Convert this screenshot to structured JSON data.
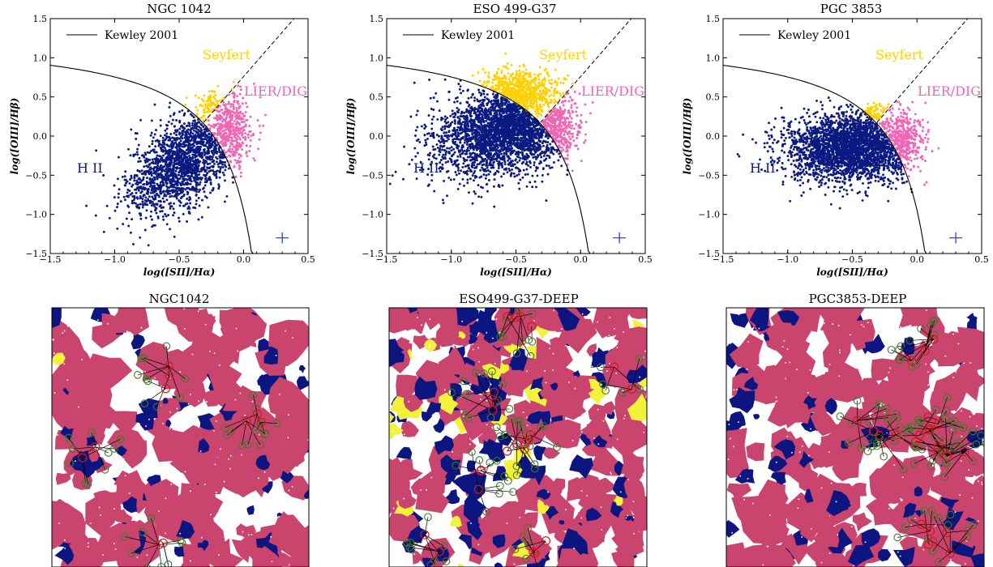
{
  "colors": {
    "hii": "#0b1a80",
    "seyfert": "#ffd000",
    "lier": "#f066b4",
    "map_pink": "#c9456e",
    "map_navy": "#0d1580",
    "map_yellow": "#f2f23a",
    "errorbar": "#1f2ee0"
  },
  "chart_data": [
    {
      "type": "scatter",
      "title": "NGC 1042",
      "xlabel": "log([SII]/Hα)",
      "ylabel": "log([OIII]/Hβ)",
      "xlim": [
        -1.5,
        0.5
      ],
      "ylim": [
        -1.5,
        1.5
      ],
      "xticks": [
        "−1.5",
        "−1.0",
        "−0.5",
        "0.0",
        "0.5"
      ],
      "yticks": [
        "−1.5",
        "−1.0",
        "−0.5",
        "0.0",
        "0.5",
        "1.0",
        "1.5"
      ],
      "legend": {
        "entry": "Kewley 2001",
        "placement": "top-left"
      },
      "region_labels": {
        "hii": "H II",
        "seyfert": "Seyfert",
        "lier": "LIER/DIG"
      },
      "errorbar": {
        "x": 0.3,
        "y": -1.3,
        "dx": 0.05,
        "dy": 0.07
      },
      "series": [
        {
          "class": "hii",
          "x_center": -0.45,
          "y_center": -0.3,
          "x_spread": 0.22,
          "y_spread": 0.28,
          "tilt": 0.9,
          "count": 1700
        },
        {
          "class": "seyfert",
          "x_center": -0.24,
          "y_center": 0.35,
          "x_spread": 0.07,
          "y_spread": 0.15,
          "tilt": 0.0,
          "count": 90
        },
        {
          "class": "lier",
          "x_center": -0.12,
          "y_center": 0.05,
          "x_spread": 0.1,
          "y_spread": 0.25,
          "tilt": 0.0,
          "count": 450
        }
      ]
    },
    {
      "type": "scatter",
      "title": "ESO 499-G37",
      "xlabel": "log([SII]/Hα)",
      "ylabel": "log([OIII]/Hβ)",
      "xlim": [
        -1.5,
        0.5
      ],
      "ylim": [
        -1.5,
        1.5
      ],
      "xticks": [
        "−1.5",
        "−1.0",
        "−0.5",
        "0.0",
        "0.5"
      ],
      "yticks": [
        "−1.5",
        "−1.0",
        "−0.5",
        "0.0",
        "0.5",
        "1.0",
        "1.5"
      ],
      "legend": {
        "entry": "Kewley 2001",
        "placement": "top-left"
      },
      "region_labels": {
        "hii": "H II",
        "seyfert": "Seyfert",
        "lier": "LIER/DIG"
      },
      "errorbar": {
        "x": 0.3,
        "y": -1.3,
        "dx": 0.05,
        "dy": 0.07
      },
      "series": [
        {
          "class": "hii",
          "x_center": -0.55,
          "y_center": 0.1,
          "x_spread": 0.28,
          "y_spread": 0.28,
          "tilt": 0.3,
          "count": 2600
        },
        {
          "class": "seyfert",
          "x_center": -0.48,
          "y_center": 0.55,
          "x_spread": 0.16,
          "y_spread": 0.14,
          "tilt": 0.0,
          "count": 700
        },
        {
          "class": "lier",
          "x_center": -0.22,
          "y_center": 0.1,
          "x_spread": 0.1,
          "y_spread": 0.22,
          "tilt": 0.0,
          "count": 400
        }
      ]
    },
    {
      "type": "scatter",
      "title": "PGC 3853",
      "xlabel": "log([SII]/Hα)",
      "ylabel": "log([OIII]/Hβ)",
      "xlim": [
        -1.5,
        0.5
      ],
      "ylim": [
        -1.5,
        1.5
      ],
      "xticks": [
        "−1.5",
        "−1.0",
        "−0.5",
        "0.0",
        "0.5"
      ],
      "yticks": [
        "−1.5",
        "−1.0",
        "−0.5",
        "0.0",
        "0.5",
        "1.0",
        "1.5"
      ],
      "legend": {
        "entry": "Kewley 2001",
        "placement": "top-left"
      },
      "region_labels": {
        "hii": "H II",
        "seyfert": "Seyfert",
        "lier": "LIER/DIG"
      },
      "errorbar": {
        "x": 0.3,
        "y": -1.3,
        "dx": 0.05,
        "dy": 0.07
      },
      "series": [
        {
          "class": "hii",
          "x_center": -0.5,
          "y_center": -0.15,
          "x_spread": 0.25,
          "y_spread": 0.22,
          "tilt": 0.0,
          "count": 2600
        },
        {
          "class": "seyfert",
          "x_center": -0.33,
          "y_center": 0.28,
          "x_spread": 0.05,
          "y_spread": 0.07,
          "tilt": 0.0,
          "count": 80
        },
        {
          "class": "lier",
          "x_center": -0.14,
          "y_center": -0.05,
          "x_spread": 0.1,
          "y_spread": 0.2,
          "tilt": 0.0,
          "count": 420
        }
      ]
    }
  ],
  "maps": [
    {
      "title": "NGC1042",
      "pink_fraction": 0.4,
      "navy_fraction": 0.18,
      "yellow_fraction": 0.01,
      "node_count": 60
    },
    {
      "title": "ESO499-G37-DEEP",
      "pink_fraction": 0.3,
      "navy_fraction": 0.32,
      "yellow_fraction": 0.1,
      "node_count": 110
    },
    {
      "title": "PGC3853-DEEP",
      "pink_fraction": 0.42,
      "navy_fraction": 0.2,
      "yellow_fraction": 0.0,
      "node_count": 110
    }
  ]
}
